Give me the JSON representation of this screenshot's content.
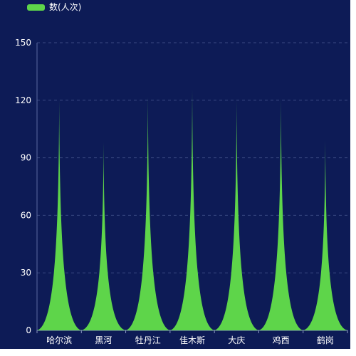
{
  "legend": {
    "label": "数(人次)",
    "color": "#5ed54a"
  },
  "chart_data": {
    "type": "bar",
    "bar_shape": "pictorial-spike",
    "categories": [
      "哈尔滨",
      "黑河",
      "牡丹江",
      "佳木斯",
      "大庆",
      "鸡西",
      "鹤岗"
    ],
    "series": [
      {
        "name": "数(人次)",
        "values": [
          120,
          98,
          122,
          126,
          120,
          121,
          99
        ]
      }
    ],
    "y_ticks": [
      0,
      30,
      60,
      90,
      120,
      150
    ],
    "ylim": [
      0,
      150
    ],
    "grid": true,
    "legend_position": "top-left",
    "colors": {
      "background": "#0d1b56",
      "bar": "#5ed54a",
      "grid": "#3a4a82",
      "text": "#ffffff"
    }
  }
}
